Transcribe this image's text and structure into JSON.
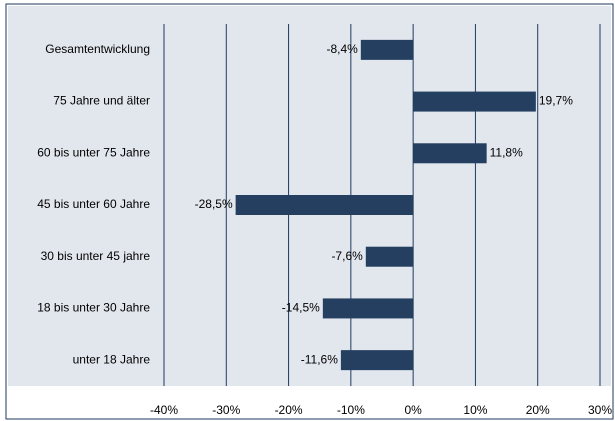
{
  "chart_data": {
    "type": "bar",
    "orientation": "horizontal",
    "categories": [
      "Gesamtentwicklung",
      "75 Jahre und älter",
      "60 bis unter 75 Jahre",
      "45 bis unter 60 Jahre",
      "30 bis unter 45 jahre",
      "18 bis unter 30 Jahre",
      "unter 18 Jahre"
    ],
    "values": [
      -8.4,
      19.7,
      11.8,
      -28.5,
      -7.6,
      -14.5,
      -11.6
    ],
    "value_labels": [
      "-8,4%",
      "19,7%",
      "11,8%",
      "-28,5%",
      "-7,6%",
      "-14,5%",
      "-11,6%"
    ],
    "color": "#243f60",
    "xlim": [
      -40,
      30
    ],
    "xticks": [
      {
        "value": -40,
        "label": "-40%"
      },
      {
        "value": -30,
        "label": "-30%"
      },
      {
        "value": -20,
        "label": "-20%"
      },
      {
        "value": -10,
        "label": "-10%"
      },
      {
        "value": 0,
        "label": "0%"
      },
      {
        "value": 10,
        "label": "10%"
      },
      {
        "value": 20,
        "label": "20%"
      },
      {
        "value": 30,
        "label": "30%"
      }
    ],
    "grid": true
  }
}
